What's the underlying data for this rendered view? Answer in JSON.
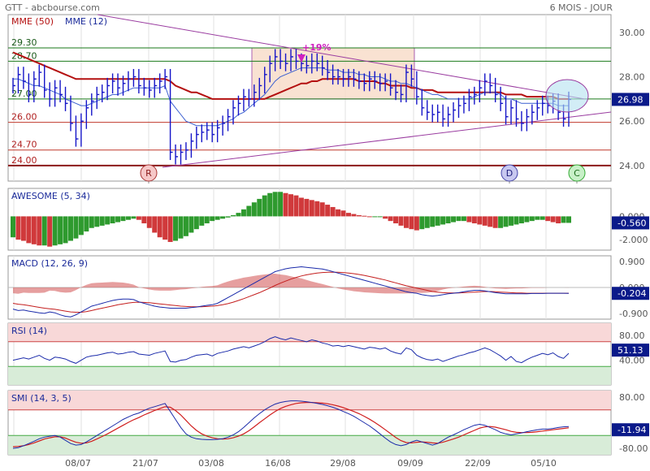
{
  "header": {
    "title": "GTT - abcbourse.com",
    "period": "6 MOIS - JOUR"
  },
  "colors": {
    "price": "#1515c8",
    "mme50": "#b41010",
    "mme12": "#3a5fd0",
    "trend": "#9a3ca0",
    "green": "#2a8a2a",
    "red": "#cc3333",
    "label_bg": "#0b1a8a"
  },
  "chart_data": [
    {
      "type": "line",
      "name": "price",
      "legend": [
        "MME (50)",
        "MME (12)"
      ],
      "x_ticks": [
        "08/07",
        "21/07",
        "03/08",
        "16/08",
        "29/08",
        "09/09",
        "22/09",
        "05/10"
      ],
      "y_ticks": [
        "30.00",
        "28.00",
        "26.00",
        "24.00"
      ],
      "ylim": [
        23.3,
        30.8
      ],
      "last_label": "26.98",
      "h_levels": [
        {
          "label": "29.30",
          "value": 29.3,
          "color": "#1a7a1a"
        },
        {
          "label": "28.70",
          "value": 28.7,
          "color": "#1a7a1a"
        },
        {
          "label": "27.00",
          "value": 27.0,
          "color": "#1a7a1a"
        },
        {
          "label": "26.00",
          "value": 25.95,
          "color": "#c0392b"
        },
        {
          "label": "24.70",
          "value": 24.7,
          "color": "#c0392b"
        },
        {
          "label": "24.00",
          "value": 24.0,
          "color": "#8b1a1a"
        }
      ],
      "annotation": "+19%",
      "markers": [
        "R",
        "D",
        "C"
      ],
      "close": [
        27.6,
        28.1,
        27.8,
        27.2,
        27.9,
        28.2,
        27.4,
        27.0,
        27.5,
        27.2,
        26.8,
        25.9,
        25.2,
        26.0,
        26.6,
        26.9,
        27.2,
        27.3,
        27.6,
        27.8,
        27.5,
        27.7,
        27.9,
        28.0,
        27.6,
        27.5,
        27.4,
        27.6,
        27.8,
        28.0,
        24.6,
        24.4,
        24.6,
        24.7,
        25.1,
        25.4,
        25.5,
        25.6,
        25.4,
        25.7,
        25.9,
        26.2,
        26.6,
        26.8,
        27.1,
        27.0,
        27.3,
        27.6,
        28.1,
        28.6,
        28.9,
        28.7,
        28.6,
        28.9,
        28.7,
        28.6,
        28.5,
        28.7,
        28.6,
        28.4,
        28.2,
        28.0,
        28.0,
        27.9,
        28.0,
        27.9,
        27.8,
        27.7,
        27.9,
        27.8,
        27.7,
        27.8,
        27.5,
        27.3,
        27.2,
        28.2,
        27.9,
        27.1,
        26.6,
        26.4,
        26.3,
        26.4,
        26.1,
        26.3,
        26.5,
        26.7,
        26.8,
        27.1,
        27.2,
        27.5,
        27.8,
        27.6,
        27.2,
        26.8,
        26.2,
        26.6,
        26.1,
        25.9,
        26.2,
        26.4,
        26.6,
        26.8,
        26.7,
        26.9,
        26.4,
        26.1,
        26.98
      ],
      "mme50": [
        29.1,
        29.0,
        28.9,
        28.8,
        28.7,
        28.6,
        28.5,
        28.4,
        28.3,
        28.2,
        28.1,
        28.0,
        27.9,
        27.9,
        27.9,
        27.9,
        27.9,
        27.9,
        27.9,
        27.9,
        27.9,
        27.9,
        27.9,
        27.9,
        27.9,
        27.9,
        27.9,
        27.9,
        27.9,
        27.9,
        27.8,
        27.6,
        27.5,
        27.4,
        27.3,
        27.3,
        27.2,
        27.1,
        27.0,
        27.0,
        27.0,
        27.0,
        27.0,
        27.0,
        27.0,
        27.0,
        27.0,
        27.0,
        27.0,
        27.1,
        27.2,
        27.3,
        27.4,
        27.5,
        27.6,
        27.7,
        27.7,
        27.8,
        27.8,
        27.9,
        27.9,
        27.9,
        27.9,
        27.9,
        27.9,
        27.9,
        27.8,
        27.8,
        27.8,
        27.8,
        27.7,
        27.7,
        27.6,
        27.6,
        27.6,
        27.6,
        27.5,
        27.5,
        27.4,
        27.4,
        27.4,
        27.3,
        27.3,
        27.3,
        27.3,
        27.3,
        27.3,
        27.3,
        27.3,
        27.3,
        27.3,
        27.3,
        27.3,
        27.3,
        27.2,
        27.2,
        27.2,
        27.2,
        27.1,
        27.1,
        27.1,
        27.1,
        27.1,
        27.1,
        27.0,
        27.0,
        27.0
      ],
      "mme12": [
        27.9,
        27.9,
        27.8,
        27.7,
        27.6,
        27.6,
        27.5,
        27.4,
        27.3,
        27.2,
        27.0,
        26.9,
        26.8,
        26.7,
        26.7,
        26.8,
        26.9,
        27.0,
        27.1,
        27.2,
        27.2,
        27.3,
        27.4,
        27.5,
        27.5,
        27.5,
        27.5,
        27.5,
        27.5,
        27.6,
        26.9,
        26.6,
        26.3,
        26.0,
        25.9,
        25.8,
        25.8,
        25.8,
        25.8,
        25.8,
        25.9,
        26.0,
        26.1,
        26.3,
        26.4,
        26.6,
        26.8,
        27.0,
        27.2,
        27.5,
        27.8,
        28.0,
        28.1,
        28.2,
        28.3,
        28.4,
        28.4,
        28.4,
        28.4,
        28.4,
        28.3,
        28.3,
        28.3,
        28.2,
        28.2,
        28.2,
        28.1,
        28.1,
        28.0,
        28.0,
        28.0,
        27.9,
        27.8,
        27.8,
        27.7,
        27.7,
        27.6,
        27.5,
        27.4,
        27.3,
        27.2,
        27.2,
        27.1,
        27.0,
        27.0,
        27.0,
        27.0,
        27.0,
        27.1,
        27.2,
        27.3,
        27.3,
        27.3,
        27.2,
        27.0,
        27.0,
        26.9,
        26.8,
        26.8,
        26.8,
        26.8,
        26.8,
        26.8,
        26.8,
        26.7,
        26.7,
        26.7
      ]
    },
    {
      "type": "bar",
      "name": "AWESOME (5, 34)",
      "y_ticks": [
        "0.000",
        "-2.000"
      ],
      "ylim": [
        -2.9,
        2.4
      ],
      "last_label": "-0.560",
      "values": [
        -1.8,
        -2.0,
        -2.1,
        -2.3,
        -2.4,
        -2.5,
        -2.5,
        -2.6,
        -2.5,
        -2.4,
        -2.3,
        -2.1,
        -1.9,
        -1.6,
        -1.3,
        -1.0,
        -0.9,
        -0.8,
        -0.7,
        -0.6,
        -0.5,
        -0.4,
        -0.3,
        -0.2,
        -0.3,
        -0.6,
        -1.0,
        -1.4,
        -1.8,
        -2.0,
        -2.2,
        -2.1,
        -1.9,
        -1.7,
        -1.4,
        -1.1,
        -0.8,
        -0.6,
        -0.4,
        -0.3,
        -0.2,
        -0.1,
        0.1,
        0.3,
        0.6,
        0.9,
        1.2,
        1.5,
        1.8,
        2.0,
        2.1,
        2.1,
        2.0,
        1.9,
        1.8,
        1.6,
        1.5,
        1.4,
        1.3,
        1.2,
        1.0,
        0.8,
        0.6,
        0.5,
        0.3,
        0.2,
        0.1,
        0.05,
        0,
        0,
        0,
        -0.2,
        -0.4,
        -0.6,
        -0.8,
        -1.0,
        -1.1,
        -1.2,
        -1.1,
        -1.0,
        -0.9,
        -0.8,
        -0.7,
        -0.6,
        -0.5,
        -0.4,
        -0.4,
        -0.5,
        -0.6,
        -0.7,
        -0.8,
        -0.9,
        -1.0,
        -1.0,
        -0.9,
        -0.8,
        -0.7,
        -0.6,
        -0.5,
        -0.4,
        -0.3,
        -0.3,
        -0.4,
        -0.5,
        -0.6,
        -0.56,
        -0.56
      ]
    },
    {
      "type": "line",
      "name": "MACD (12, 26, 9)",
      "y_ticks": [
        "0.900",
        "0.000",
        "-0.900"
      ],
      "ylim": [
        -1.1,
        1.1
      ],
      "last_label": "-0.204",
      "macd": [
        -0.75,
        -0.8,
        -0.78,
        -0.82,
        -0.85,
        -0.88,
        -0.9,
        -0.85,
        -0.88,
        -0.95,
        -1.0,
        -1.02,
        -0.95,
        -0.85,
        -0.75,
        -0.65,
        -0.6,
        -0.55,
        -0.5,
        -0.45,
        -0.42,
        -0.4,
        -0.4,
        -0.42,
        -0.5,
        -0.55,
        -0.6,
        -0.65,
        -0.68,
        -0.7,
        -0.72,
        -0.72,
        -0.72,
        -0.72,
        -0.7,
        -0.68,
        -0.65,
        -0.62,
        -0.6,
        -0.55,
        -0.45,
        -0.35,
        -0.25,
        -0.15,
        -0.05,
        0.05,
        0.15,
        0.25,
        0.35,
        0.45,
        0.55,
        0.6,
        0.65,
        0.68,
        0.7,
        0.72,
        0.7,
        0.68,
        0.66,
        0.64,
        0.6,
        0.55,
        0.5,
        0.45,
        0.4,
        0.35,
        0.3,
        0.25,
        0.2,
        0.15,
        0.1,
        0.05,
        0.0,
        -0.05,
        -0.1,
        -0.15,
        -0.18,
        -0.2,
        -0.25,
        -0.28,
        -0.3,
        -0.28,
        -0.25,
        -0.22,
        -0.2,
        -0.18,
        -0.15,
        -0.12,
        -0.1,
        -0.1,
        -0.12,
        -0.15,
        -0.18,
        -0.2,
        -0.22,
        -0.22,
        -0.22,
        -0.22,
        -0.22,
        -0.21,
        -0.21,
        -0.21,
        -0.2,
        -0.2,
        -0.2,
        -0.2,
        -0.204
      ],
      "signal": [
        -0.55,
        -0.58,
        -0.6,
        -0.63,
        -0.66,
        -0.69,
        -0.72,
        -0.74,
        -0.76,
        -0.79,
        -0.82,
        -0.85,
        -0.86,
        -0.86,
        -0.84,
        -0.8,
        -0.76,
        -0.72,
        -0.68,
        -0.64,
        -0.6,
        -0.57,
        -0.54,
        -0.52,
        -0.51,
        -0.52,
        -0.53,
        -0.55,
        -0.57,
        -0.59,
        -0.61,
        -0.63,
        -0.65,
        -0.66,
        -0.67,
        -0.67,
        -0.67,
        -0.66,
        -0.65,
        -0.63,
        -0.6,
        -0.56,
        -0.51,
        -0.45,
        -0.39,
        -0.32,
        -0.25,
        -0.18,
        -0.1,
        -0.02,
        0.07,
        0.15,
        0.22,
        0.29,
        0.35,
        0.4,
        0.44,
        0.47,
        0.5,
        0.52,
        0.53,
        0.53,
        0.53,
        0.52,
        0.5,
        0.48,
        0.45,
        0.42,
        0.38,
        0.34,
        0.3,
        0.26,
        0.21,
        0.16,
        0.11,
        0.06,
        0.02,
        -0.02,
        -0.06,
        -0.1,
        -0.14,
        -0.16,
        -0.18,
        -0.19,
        -0.19,
        -0.19,
        -0.18,
        -0.17,
        -0.16,
        -0.15,
        -0.14,
        -0.14,
        -0.15,
        -0.16,
        -0.17,
        -0.18,
        -0.19,
        -0.19,
        -0.2,
        -0.2,
        -0.2,
        -0.2,
        -0.2,
        -0.2,
        -0.2,
        -0.2,
        -0.2
      ]
    },
    {
      "type": "line",
      "name": "RSI (14)",
      "y_ticks": [
        "80.00",
        "40.00"
      ],
      "ylim": [
        0,
        100
      ],
      "last_label": "51.13",
      "values": [
        40,
        42,
        44,
        42,
        45,
        48,
        43,
        40,
        45,
        44,
        42,
        38,
        35,
        40,
        45,
        47,
        48,
        50,
        52,
        53,
        50,
        51,
        53,
        54,
        50,
        49,
        48,
        51,
        53,
        55,
        38,
        37,
        40,
        41,
        45,
        48,
        49,
        50,
        47,
        51,
        53,
        55,
        58,
        60,
        62,
        60,
        63,
        66,
        70,
        75,
        78,
        75,
        73,
        76,
        74,
        72,
        70,
        73,
        71,
        68,
        66,
        63,
        64,
        62,
        64,
        62,
        60,
        58,
        61,
        60,
        58,
        60,
        55,
        52,
        50,
        60,
        57,
        48,
        44,
        41,
        40,
        42,
        38,
        41,
        44,
        47,
        49,
        52,
        54,
        57,
        60,
        57,
        52,
        47,
        40,
        46,
        38,
        36,
        41,
        45,
        48,
        51,
        49,
        52,
        46,
        43,
        51.13
      ]
    },
    {
      "type": "line",
      "name": "SMI (14, 3, 5)",
      "y_ticks": [
        "80.00",
        "-80.00"
      ],
      "ylim": [
        -100,
        100
      ],
      "last_label": "-11.94",
      "smi": [
        -80,
        -78,
        -72,
        -65,
        -58,
        -50,
        -45,
        -42,
        -40,
        -45,
        -55,
        -65,
        -70,
        -68,
        -60,
        -50,
        -40,
        -30,
        -20,
        -10,
        0,
        10,
        18,
        25,
        30,
        38,
        45,
        50,
        55,
        60,
        35,
        10,
        -15,
        -35,
        -45,
        -50,
        -52,
        -53,
        -53,
        -52,
        -50,
        -45,
        -38,
        -28,
        -15,
        0,
        15,
        28,
        40,
        50,
        58,
        63,
        66,
        68,
        68,
        67,
        65,
        63,
        60,
        57,
        53,
        48,
        42,
        35,
        28,
        20,
        10,
        0,
        -10,
        -22,
        -35,
        -48,
        -60,
        -68,
        -72,
        -68,
        -60,
        -55,
        -60,
        -65,
        -70,
        -65,
        -55,
        -45,
        -38,
        -30,
        -22,
        -15,
        -8,
        -5,
        -8,
        -15,
        -22,
        -30,
        -35,
        -38,
        -35,
        -32,
        -28,
        -25,
        -22,
        -20,
        -20,
        -18,
        -15,
        -13,
        -11.94
      ],
      "signal": [
        -75,
        -74,
        -72,
        -68,
        -63,
        -57,
        -51,
        -47,
        -44,
        -44,
        -48,
        -55,
        -61,
        -64,
        -63,
        -58,
        -51,
        -43,
        -35,
        -26,
        -17,
        -8,
        1,
        9,
        16,
        24,
        31,
        38,
        44,
        50,
        48,
        38,
        24,
        7,
        -10,
        -24,
        -35,
        -42,
        -47,
        -50,
        -51,
        -50,
        -47,
        -42,
        -35,
        -25,
        -13,
        0,
        12,
        24,
        35,
        44,
        51,
        56,
        60,
        62,
        63,
        63,
        62,
        61,
        59,
        56,
        52,
        47,
        41,
        35,
        28,
        20,
        11,
        1,
        -10,
        -22,
        -34,
        -46,
        -56,
        -62,
        -63,
        -61,
        -60,
        -61,
        -63,
        -64,
        -61,
        -56,
        -51,
        -45,
        -38,
        -31,
        -24,
        -17,
        -13,
        -12,
        -14,
        -18,
        -22,
        -27,
        -30,
        -31,
        -31,
        -30,
        -28,
        -26,
        -24,
        -22,
        -20,
        -18,
        -16
      ]
    }
  ]
}
